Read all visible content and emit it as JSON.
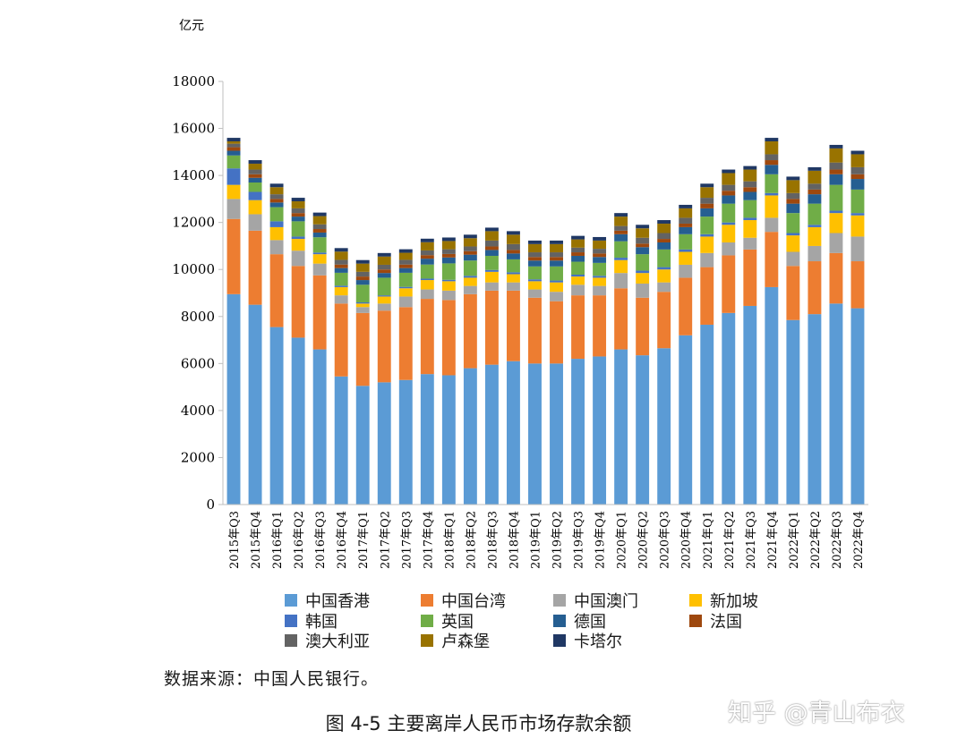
{
  "chart_data": {
    "type": "bar",
    "stacked": true,
    "title": "",
    "unit_label": "亿元",
    "ylim": [
      0,
      18000
    ],
    "yticks": [
      0,
      2000,
      4000,
      6000,
      8000,
      10000,
      12000,
      14000,
      16000,
      18000
    ],
    "categories": [
      "2015年Q3",
      "2015年Q4",
      "2016年Q1",
      "2016年Q2",
      "2016年Q3",
      "2016年Q4",
      "2017年Q1",
      "2017年Q2",
      "2017年Q3",
      "2017年Q4",
      "2018年Q1",
      "2018年Q2",
      "2018年Q3",
      "2018年Q4",
      "2019年Q1",
      "2019年Q2",
      "2019年Q3",
      "2019年Q4",
      "2020年Q1",
      "2020年Q2",
      "2020年Q3",
      "2020年Q4",
      "2021年Q1",
      "2021年Q2",
      "2021年Q3",
      "2021年Q4",
      "2022年Q1",
      "2022年Q2",
      "2022年Q3",
      "2022年Q4"
    ],
    "series": [
      {
        "name": "中国香港",
        "color": "#5b9bd5",
        "values": [
          8950,
          8500,
          7550,
          7100,
          6600,
          5450,
          5050,
          5200,
          5300,
          5550,
          5500,
          5800,
          5950,
          6100,
          6000,
          6000,
          6200,
          6300,
          6600,
          6350,
          6650,
          7200,
          7650,
          8150,
          8450,
          9250,
          7850,
          8100,
          8550,
          8350
        ]
      },
      {
        "name": "中国台湾",
        "color": "#ed7d31",
        "values": [
          3200,
          3150,
          3100,
          3050,
          3150,
          3100,
          3100,
          3050,
          3100,
          3200,
          3200,
          3150,
          3150,
          3000,
          2800,
          2650,
          2700,
          2600,
          2600,
          2450,
          2400,
          2450,
          2450,
          2450,
          2400,
          2350,
          2300,
          2250,
          2150,
          2000
        ]
      },
      {
        "name": "中国澳门",
        "color": "#a5a5a5",
        "values": [
          850,
          700,
          600,
          650,
          500,
          350,
          250,
          300,
          450,
          400,
          400,
          350,
          350,
          350,
          350,
          400,
          450,
          400,
          650,
          600,
          400,
          550,
          600,
          550,
          500,
          600,
          600,
          650,
          850,
          1050
        ]
      },
      {
        "name": "新加坡",
        "color": "#ffc000",
        "values": [
          600,
          600,
          550,
          500,
          400,
          350,
          150,
          300,
          350,
          400,
          400,
          350,
          450,
          350,
          350,
          400,
          350,
          350,
          550,
          450,
          550,
          550,
          700,
          750,
          750,
          950,
          700,
          800,
          850,
          900
        ]
      },
      {
        "name": "韩国",
        "color": "#4472c4",
        "values": [
          700,
          350,
          250,
          100,
          70,
          60,
          50,
          50,
          60,
          60,
          60,
          80,
          80,
          80,
          80,
          80,
          80,
          80,
          100,
          100,
          100,
          100,
          100,
          100,
          100,
          100,
          100,
          100,
          100,
          100
        ]
      },
      {
        "name": "英国",
        "color": "#70ad47",
        "values": [
          550,
          400,
          600,
          650,
          650,
          550,
          750,
          750,
          600,
          600,
          700,
          650,
          600,
          550,
          550,
          600,
          550,
          550,
          700,
          700,
          750,
          650,
          750,
          800,
          750,
          800,
          850,
          900,
          1100,
          1000
        ]
      },
      {
        "name": "德国",
        "color": "#255e91",
        "values": [
          200,
          200,
          200,
          200,
          200,
          200,
          200,
          200,
          200,
          250,
          250,
          250,
          250,
          250,
          250,
          250,
          250,
          250,
          300,
          300,
          300,
          300,
          350,
          350,
          350,
          400,
          400,
          400,
          450,
          450
        ]
      },
      {
        "name": "法国",
        "color": "#9e480e",
        "values": [
          150,
          150,
          150,
          150,
          150,
          150,
          150,
          150,
          150,
          150,
          150,
          150,
          150,
          150,
          150,
          150,
          150,
          150,
          150,
          150,
          150,
          150,
          200,
          200,
          200,
          200,
          200,
          200,
          200,
          200
        ]
      },
      {
        "name": "澳大利亚",
        "color": "#636363",
        "values": [
          150,
          200,
          200,
          200,
          200,
          200,
          200,
          200,
          200,
          200,
          200,
          200,
          250,
          250,
          200,
          200,
          200,
          200,
          200,
          250,
          250,
          250,
          250,
          250,
          250,
          250,
          250,
          250,
          300,
          300
        ]
      },
      {
        "name": "卢森堡",
        "color": "#997300",
        "values": [
          100,
          250,
          300,
          300,
          350,
          350,
          350,
          350,
          300,
          350,
          350,
          350,
          400,
          400,
          350,
          350,
          350,
          350,
          400,
          400,
          400,
          400,
          450,
          500,
          500,
          550,
          550,
          550,
          600,
          550
        ]
      },
      {
        "name": "卡塔尔",
        "color": "#203864",
        "values": [
          150,
          150,
          150,
          150,
          150,
          150,
          150,
          150,
          150,
          150,
          150,
          150,
          150,
          150,
          150,
          150,
          150,
          150,
          150,
          150,
          150,
          150,
          150,
          150,
          150,
          150,
          150,
          150,
          150,
          150
        ]
      }
    ]
  },
  "source_note": "数据来源：中国人民银行。",
  "caption": "图 4-5  主要离岸人民币市场存款余额",
  "watermark": "知乎 @青山布衣"
}
